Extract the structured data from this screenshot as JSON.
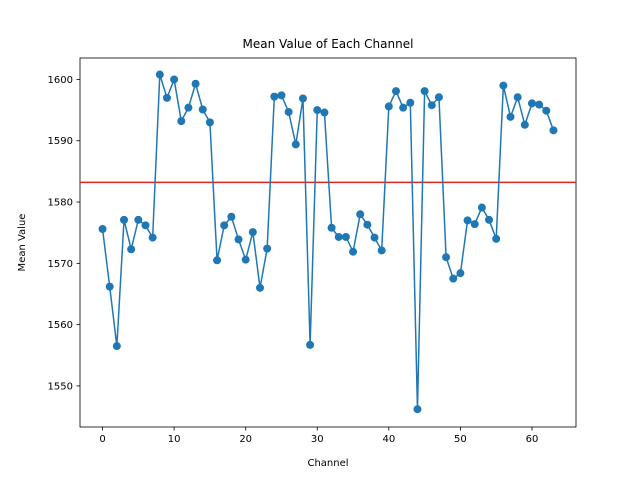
{
  "colors": {
    "series": "#1f77b4",
    "reference_line": "#d62728",
    "axis": "#000000",
    "background": "#ffffff"
  },
  "chart_data": {
    "type": "line",
    "title": "Mean Value of Each Channel",
    "xlabel": "Channel",
    "ylabel": "Mean Value",
    "xlim": [
      -3.15,
      66.15
    ],
    "ylim": [
      1543.3,
      1603.5
    ],
    "xticks": [
      0,
      10,
      20,
      30,
      40,
      50,
      60
    ],
    "yticks": [
      1550,
      1560,
      1570,
      1580,
      1590,
      1600
    ],
    "grid": false,
    "markers": "circle",
    "reference_line": {
      "orientation": "horizontal",
      "y": 1583.2
    },
    "series": [
      {
        "x": [
          0,
          1,
          2,
          3,
          4,
          5,
          6,
          7,
          8,
          9,
          10,
          11,
          12,
          13,
          14,
          15,
          16,
          17,
          18,
          19,
          20,
          21,
          22,
          23,
          24,
          25,
          26,
          27,
          28,
          29,
          30,
          31,
          32,
          33,
          34,
          35,
          36,
          37,
          38,
          39,
          40,
          41,
          42,
          43,
          44,
          45,
          46,
          47,
          48,
          49,
          50,
          51,
          52,
          53,
          54,
          55,
          56,
          57,
          58,
          59,
          60,
          61,
          62,
          63
        ],
        "values": [
          1575.6,
          1566.2,
          1556.5,
          1577.1,
          1572.3,
          1577.1,
          1576.2,
          1574.2,
          1600.8,
          1597.0,
          1600.0,
          1593.2,
          1595.4,
          1599.3,
          1595.1,
          1593.0,
          1570.5,
          1576.2,
          1577.6,
          1573.9,
          1570.6,
          1575.1,
          1566.0,
          1572.4,
          1597.2,
          1597.4,
          1594.7,
          1589.4,
          1596.9,
          1556.7,
          1595.0,
          1594.6,
          1575.8,
          1574.3,
          1574.3,
          1571.9,
          1578.0,
          1576.3,
          1574.2,
          1572.1,
          1595.6,
          1598.1,
          1595.4,
          1596.2,
          1546.2,
          1598.1,
          1595.8,
          1597.1,
          1571.0,
          1567.5,
          1568.4,
          1577.0,
          1576.4,
          1579.1,
          1577.1,
          1574.0,
          1599.0,
          1593.9,
          1597.1,
          1592.6,
          1596.1,
          1595.9,
          1594.9,
          1591.7
        ]
      }
    ]
  }
}
